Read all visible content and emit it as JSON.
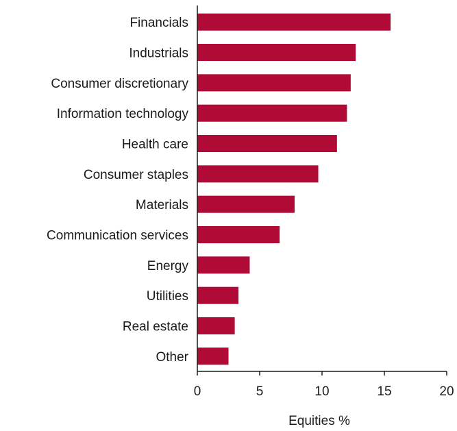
{
  "chart_data": {
    "type": "bar",
    "orientation": "horizontal",
    "categories": [
      "Financials",
      "Industrials",
      "Consumer discretionary",
      "Information technology",
      "Health care",
      "Consumer staples",
      "Materials",
      "Communication services",
      "Energy",
      "Utilities",
      "Real estate",
      "Other"
    ],
    "values": [
      15.5,
      12.7,
      12.3,
      12.0,
      11.2,
      9.7,
      7.8,
      6.6,
      4.2,
      3.3,
      3.0,
      2.5
    ],
    "xlabel": "Equities %",
    "ylabel": "",
    "xlim": [
      0,
      20
    ],
    "xticks": [
      0,
      5,
      10,
      15,
      20
    ],
    "grid": false,
    "bar_color": "#b00a37"
  }
}
